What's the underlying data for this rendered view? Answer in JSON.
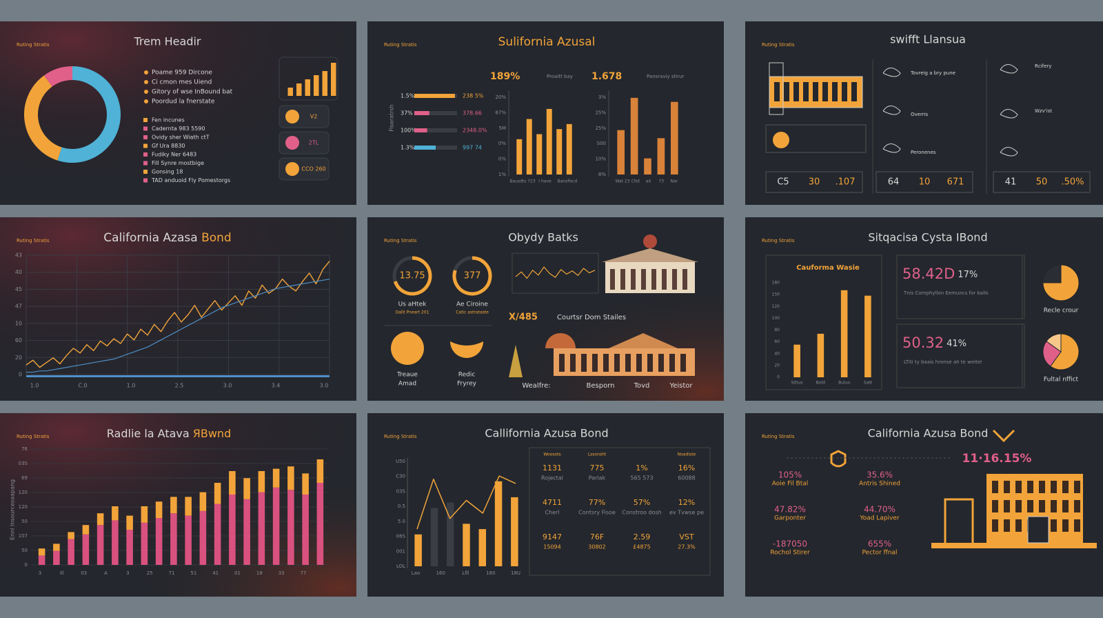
{
  "panels": [
    {
      "title": "Trem Headir",
      "tag": "Ruting Stratis",
      "donut": {
        "type": "pie",
        "values": [
          55,
          35,
          10
        ],
        "colors": [
          "#4fb2d6",
          "#f2a43a",
          "#e0608a"
        ]
      },
      "list_a": [
        "Poame 959 Dircone",
        "Ci cmon mes Uiend",
        "Gitory of wse InBound bat",
        "Poordud la fnerstate"
      ],
      "list_b": [
        "Fen incunes",
        "Cadernta 983 5590",
        "Ovidy sher Wiath ctT",
        "Gf Ura 8830",
        "Fudiky Ner 6483",
        "Fill Synre mostbige",
        "Gonsing 18",
        "TAD anduoid Fly Pomestorgs"
      ],
      "mini_bars": {
        "type": "bar",
        "values": [
          2,
          3,
          4,
          5,
          6,
          8
        ],
        "color": "#f2a43a",
        "ylim": [
          0,
          8
        ]
      },
      "tiles": [
        "V2",
        "2TL",
        "CCO 260"
      ]
    },
    {
      "title": "Sulifornia Azusal",
      "tag": "Ruting Stratis",
      "side_label": "Fiseratrsh",
      "hbars": {
        "type": "bar",
        "categories": [
          "1.5%",
          "37%",
          "100%",
          "1.3%"
        ],
        "values": [
          95,
          35,
          30,
          50
        ],
        "colors": [
          "#f2a43a",
          "#e0608a",
          "#e0608a",
          "#4fb2d6"
        ],
        "xlim": [
          0,
          100
        ],
        "right_labels": [
          "238 5%",
          "378.66",
          "2348.0%",
          "997 74"
        ]
      },
      "stat_a": "189%",
      "stat_a_note": "Proaitt bay",
      "stat_b": "1.678",
      "stat_b_note": "Pansraviy stirur",
      "bars_a": {
        "type": "bar",
        "values": [
          3.5,
          5.5,
          4,
          6.5,
          4.5,
          5
        ],
        "color": "#f2a43a",
        "ylim": [
          0,
          8
        ],
        "y_labels": [
          "20%",
          "67%",
          "5M",
          "0%",
          "0%",
          "1%"
        ],
        "x_labels": [
          "Bausdts 723",
          "I have",
          "Bansfiscd"
        ]
      },
      "bars_b": {
        "type": "bar",
        "values": [
          5.5,
          9.5,
          2,
          4.5,
          9
        ],
        "color": "#d9823a",
        "ylim": [
          0,
          10
        ],
        "y_labels": [
          "3%",
          "25%",
          "25%",
          "S00",
          "10%",
          "8%"
        ],
        "x_labels": [
          "Wat 23",
          "Cltd",
          "a4",
          "73",
          "Nar"
        ]
      }
    },
    {
      "title": "swifft Llansua",
      "tag": "Ruting Stratis",
      "notes": [
        "Tovreig a bry pune",
        "Overris",
        "Rcifery",
        "Wzv'ist",
        "Peronenes"
      ],
      "stat_boxes": [
        [
          "C5",
          "30",
          ".107"
        ],
        [
          "64",
          "10",
          "671"
        ],
        [
          "41",
          "50",
          ".50%"
        ]
      ]
    },
    {
      "title_a": "California Azasa ",
      "title_b": "Bond",
      "tag": "Ruting Stratis",
      "chart": {
        "type": "line",
        "ylim": [
          0,
          100
        ],
        "series": [
          {
            "color": "#f2a43a",
            "values": [
              8,
              12,
              6,
              10,
              14,
              9,
              16,
              22,
              18,
              25,
              20,
              28,
              24,
              30,
              26,
              34,
              29,
              38,
              33,
              42,
              36,
              45,
              52,
              44,
              50,
              58,
              48,
              55,
              62,
              54,
              60,
              66,
              58,
              70,
              64,
              75,
              68,
              72,
              80,
              74,
              70,
              78,
              85,
              76,
              88,
              95
            ]
          },
          {
            "color": "#4f8fc8",
            "values": [
              2,
              2,
              3,
              3,
              4,
              5,
              6,
              7,
              8,
              9,
              10,
              11,
              12,
              13,
              15,
              17,
              19,
              21,
              23,
              26,
              29,
              32,
              35,
              38,
              41,
              44,
              47,
              50,
              53,
              56,
              58,
              60,
              62,
              64,
              66,
              68,
              70,
              72,
              73,
              74,
              75,
              76,
              77,
              78,
              79,
              80
            ]
          }
        ],
        "y_labels": [
          "43",
          "40",
          "45",
          "47",
          "10",
          "60",
          "20",
          "0"
        ],
        "x_labels": [
          "1.0",
          "C.0",
          "1.0",
          "2.5",
          "3.0",
          "3.4",
          "3.0"
        ]
      }
    },
    {
      "title": "Obydy Batks",
      "tag": "Ruting Stratis",
      "gauges": [
        {
          "value": "13.75",
          "fill": 70,
          "label": "Us aHtek",
          "sub": "Dalit Pneart 201"
        },
        {
          "value": "377",
          "fill": 80,
          "label": "Ae Ciroine",
          "sub": "Catic astrataste"
        }
      ],
      "mini_line": {
        "type": "line",
        "values": [
          40,
          55,
          35,
          60,
          45,
          70,
          50,
          38,
          62,
          48,
          58,
          44,
          66,
          52,
          60
        ],
        "color": "#f2a43a",
        "ylim": [
          0,
          100
        ]
      },
      "code": "X/485",
      "heading": "Courtsr Dom Stailes",
      "circles": [
        [
          "Treaue",
          "Amad"
        ],
        [
          "Redic",
          "Fryrey"
        ]
      ],
      "bottom_labels": [
        "Wealfre:",
        "Besporn",
        "Tovd",
        "Yeistor"
      ]
    },
    {
      "title": "Sitqacisa Cysta IBond",
      "tag": "Ruting Stratis",
      "chart": {
        "type": "bar",
        "title": "Cauforma Wasie",
        "values": [
          60,
          80,
          160,
          150
        ],
        "color": "#f2a43a",
        "ylim": [
          0,
          180
        ],
        "y_labels": [
          "180",
          "150",
          "120",
          "100",
          "80",
          "60",
          "40",
          "20",
          "0"
        ],
        "x_labels": [
          "Sittus",
          "Bold",
          "Buluo",
          "Satt"
        ]
      },
      "stats": [
        {
          "big": "58.42D",
          "pct": "17%",
          "caption": "Recle crour",
          "text": "Tnis Comphyllon Eemuncs for balls",
          "pie": {
            "type": "pie",
            "values": [
              75,
              25
            ],
            "colors": [
              "#f2a43a",
              "#2a2d33"
            ]
          }
        },
        {
          "big": "50.32",
          "pct": "41%",
          "caption": "Fultal nffict",
          "text": "LTiti ty baais hronse ah te weitel",
          "pie": {
            "type": "pie",
            "values": [
              60,
              25,
              15
            ],
            "colors": [
              "#f2a43a",
              "#e0608a",
              "#f6c98a"
            ]
          }
        }
      ]
    },
    {
      "title_a": "Radlie la Atava ",
      "title_b": "ЯBwnd",
      "tag": "Ruting Stratis",
      "side_label": "Ennl Insourcesaapang",
      "chart": {
        "type": "bar",
        "ylim": [
          0,
          100
        ],
        "series": [
          {
            "color": "#d9517f",
            "values": [
              8,
              12,
              22,
              26,
              34,
              38,
              30,
              36,
              40,
              44,
              42,
              46,
              52,
              60,
              56,
              62,
              66,
              64,
              60,
              70
            ]
          },
          {
            "color": "#f2a43a",
            "values": [
              6,
              6,
              6,
              8,
              10,
              12,
              12,
              14,
              14,
              14,
              16,
              16,
              18,
              20,
              18,
              18,
              16,
              20,
              18,
              20
            ]
          }
        ],
        "y_labels": [
          "76",
          "03S",
          "69",
          "120",
          "120",
          "50",
          "107",
          "50",
          "0"
        ],
        "x_labels": [
          "3",
          "Ill",
          "03",
          "A",
          "3",
          "25",
          "71",
          "51",
          "41",
          "01",
          "18",
          "33",
          "77"
        ]
      }
    },
    {
      "title": "Callifornia Azusa Bond",
      "tag": "Ruting Stratis",
      "chart": {
        "type": "bar",
        "ylim": [
          0,
          100
        ],
        "bars": {
          "values": [
            30,
            55,
            60,
            40,
            35,
            80,
            65
          ],
          "colors": [
            "#f2a43a",
            "#3a3d44",
            "#3a3d44",
            "#f2a43a",
            "#f2a43a",
            "#f2a43a",
            "#f2a43a"
          ]
        },
        "line": {
          "values": [
            35,
            82,
            45,
            62,
            50,
            85,
            78
          ],
          "color": "#f2a43a"
        },
        "y_labels": [
          "U50",
          "C30",
          "03S",
          "0.5",
          "5.0",
          "06S",
          "001",
          "LOL"
        ],
        "x_labels": [
          "Lao",
          "160",
          "Lfll",
          "180",
          "18U"
        ]
      },
      "table": {
        "header": [
          "Woosots",
          "Lssonsht",
          "",
          "Noadiste"
        ],
        "rows": [
          [
            [
              "1131",
              "Rojectal"
            ],
            [
              "775",
              "Parlak"
            ],
            [
              "1%",
              "565 573"
            ],
            [
              "16%",
              "60088"
            ]
          ],
          [
            [
              "4711",
              "Cherl"
            ],
            [
              "77%",
              "Contsry Fisoe"
            ],
            [
              "57%",
              "Constroo dosh"
            ],
            [
              "12%",
              "ev Tvwse pe"
            ]
          ],
          [
            [
              "9147",
              "15094"
            ],
            [
              "76F",
              "30802"
            ],
            [
              "2.59",
              "£4875"
            ],
            [
              "VST",
              "27.3%"
            ]
          ]
        ]
      }
    },
    {
      "title": "California Azusa Bond",
      "tag": "Ruting Stratis",
      "headline": "11·16.15%",
      "left_stats": [
        [
          "105%",
          "Aoie Fil Btal"
        ],
        [
          "47.82%",
          "Garponter"
        ],
        [
          "-187050",
          "Rochol Stirer"
        ]
      ],
      "mid_stats": [
        [
          "35.6%",
          "Antris Shined"
        ],
        [
          "44.70%",
          "Yoad Lapiver"
        ],
        [
          "655%",
          "Pector ffnal"
        ]
      ]
    }
  ]
}
